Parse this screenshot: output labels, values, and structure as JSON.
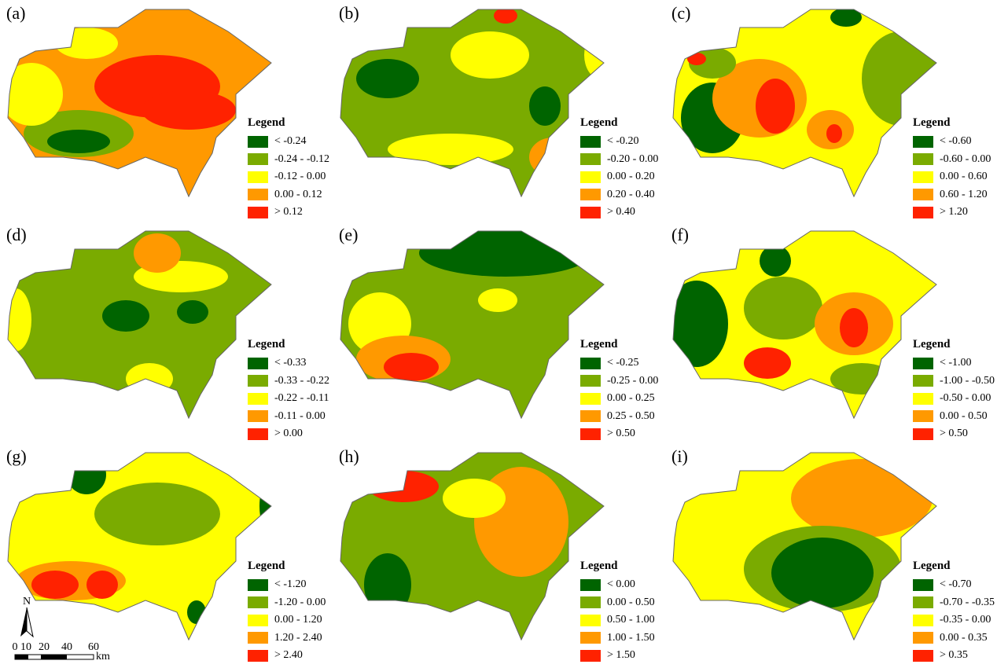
{
  "colors": [
    "#006400",
    "#7aab00",
    "#ffff00",
    "#ff9900",
    "#ff2200"
  ],
  "legend_title": "Legend",
  "panels": [
    {
      "label": "(a)",
      "legend": [
        "< -0.24",
        "-0.24 - -0.12",
        "-0.12 - 0.00",
        "0.00 - 0.12",
        "> 0.12"
      ]
    },
    {
      "label": "(b)",
      "legend": [
        "< -0.20",
        "-0.20 - 0.00",
        "0.00 - 0.20",
        "0.20 - 0.40",
        "> 0.40"
      ]
    },
    {
      "label": "(c)",
      "legend": [
        "< -0.60",
        "-0.60 - 0.00",
        "0.00 - 0.60",
        "0.60 - 1.20",
        "> 1.20"
      ]
    },
    {
      "label": "(d)",
      "legend": [
        "< -0.33",
        "-0.33 - -0.22",
        "-0.22 - -0.11",
        "-0.11 - 0.00",
        "> 0.00"
      ]
    },
    {
      "label": "(e)",
      "legend": [
        "< -0.25",
        "-0.25 - 0.00",
        "0.00 - 0.25",
        "0.25 - 0.50",
        "> 0.50"
      ]
    },
    {
      "label": "(f)",
      "legend": [
        "< -1.00",
        "-1.00 - -0.50",
        "-0.50 - 0.00",
        "0.00 - 0.50",
        "> 0.50"
      ]
    },
    {
      "label": "(g)",
      "legend": [
        "< -1.20",
        "-1.20 - 0.00",
        "0.00 - 1.20",
        "1.20 - 2.40",
        "> 2.40"
      ]
    },
    {
      "label": "(h)",
      "legend": [
        "< 0.00",
        "0.00 - 0.50",
        "0.50 - 1.00",
        "1.00 - 1.50",
        "> 1.50"
      ]
    },
    {
      "label": "(i)",
      "legend": [
        "< -0.70",
        "-0.70 - -0.35",
        "-0.35 - 0.00",
        "0.00 - 0.35",
        "> 0.35"
      ]
    }
  ],
  "panel_base": [
    3,
    1,
    2,
    1,
    1,
    2,
    2,
    1,
    2
  ],
  "north_label": "N",
  "scale": {
    "ticks": [
      "0",
      "10",
      "20",
      "40",
      "60"
    ],
    "unit": "km"
  }
}
